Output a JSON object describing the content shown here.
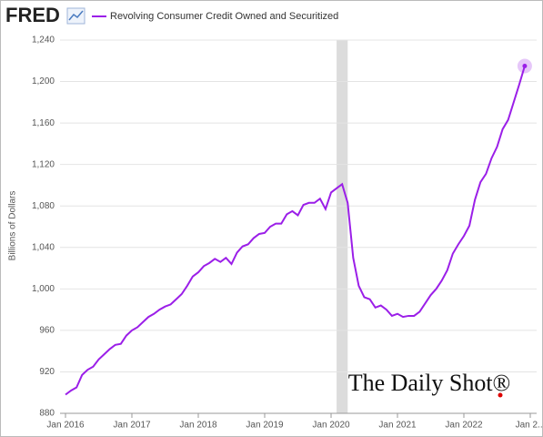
{
  "chart_data": {
    "type": "line",
    "brand": "FRED",
    "title": "Revolving Consumer Credit Owned and Securitized",
    "y_label": "Billions of Dollars",
    "watermark": "The Daily Shot®",
    "x": [
      "2016-01",
      "2016-02",
      "2016-03",
      "2016-04",
      "2016-05",
      "2016-06",
      "2016-07",
      "2016-08",
      "2016-09",
      "2016-10",
      "2016-11",
      "2016-12",
      "2017-01",
      "2017-02",
      "2017-03",
      "2017-04",
      "2017-05",
      "2017-06",
      "2017-07",
      "2017-08",
      "2017-09",
      "2017-10",
      "2017-11",
      "2017-12",
      "2018-01",
      "2018-02",
      "2018-03",
      "2018-04",
      "2018-05",
      "2018-06",
      "2018-07",
      "2018-08",
      "2018-09",
      "2018-10",
      "2018-11",
      "2018-12",
      "2019-01",
      "2019-02",
      "2019-03",
      "2019-04",
      "2019-05",
      "2019-06",
      "2019-07",
      "2019-08",
      "2019-09",
      "2019-10",
      "2019-11",
      "2019-12",
      "2020-01",
      "2020-02",
      "2020-03",
      "2020-04",
      "2020-05",
      "2020-06",
      "2020-07",
      "2020-08",
      "2020-09",
      "2020-10",
      "2020-11",
      "2020-12",
      "2021-01",
      "2021-02",
      "2021-03",
      "2021-04",
      "2021-05",
      "2021-06",
      "2021-07",
      "2021-08",
      "2021-09",
      "2021-10",
      "2021-11",
      "2021-12",
      "2022-01",
      "2022-02",
      "2022-03",
      "2022-04",
      "2022-05",
      "2022-06",
      "2022-07",
      "2022-08",
      "2022-09",
      "2022-10",
      "2022-11",
      "2022-12"
    ],
    "series": [
      {
        "name": "Revolving Consumer Credit Owned and Securitized",
        "color": "#9b1fe8",
        "values": [
          898,
          902,
          905,
          917,
          922,
          925,
          932,
          937,
          942,
          946,
          947,
          955,
          960,
          963,
          968,
          973,
          976,
          980,
          983,
          985,
          990,
          995,
          1003,
          1012,
          1016,
          1022,
          1025,
          1029,
          1026,
          1030,
          1024,
          1035,
          1041,
          1043,
          1049,
          1053,
          1054,
          1060,
          1063,
          1063,
          1072,
          1075,
          1071,
          1081,
          1083,
          1083,
          1087,
          1077,
          1093,
          1097,
          1101,
          1083,
          1030,
          1003,
          992,
          990,
          982,
          984,
          980,
          974,
          976,
          973,
          974,
          974,
          978,
          986,
          994,
          1000,
          1008,
          1018,
          1034,
          1043,
          1051,
          1061,
          1086,
          1103,
          1111,
          1126,
          1137,
          1154,
          1163,
          1180,
          1197,
          1215
        ]
      }
    ],
    "xlim": [
      "2016-01",
      "2023-01"
    ],
    "xticks": [
      {
        "value": "2016-01",
        "label": "Jan 2016"
      },
      {
        "value": "2017-01",
        "label": "Jan 2017"
      },
      {
        "value": "2018-01",
        "label": "Jan 2018"
      },
      {
        "value": "2019-01",
        "label": "Jan 2019"
      },
      {
        "value": "2020-01",
        "label": "Jan 2020"
      },
      {
        "value": "2021-01",
        "label": "Jan 2021"
      },
      {
        "value": "2022-01",
        "label": "Jan 2022"
      },
      {
        "value": "2023-01",
        "label": "Jan 2..."
      }
    ],
    "ylim": [
      880,
      1240
    ],
    "yticks": [
      880,
      920,
      960,
      {
        "value": 1000,
        "label": "1,000"
      },
      {
        "value": 1040,
        "label": "1,040"
      },
      {
        "value": 1080,
        "label": "1,080"
      },
      {
        "value": 1120,
        "label": "1,120"
      },
      {
        "value": 1160,
        "label": "1,160"
      },
      {
        "value": 1200,
        "label": "1,200"
      },
      {
        "value": 1240,
        "label": "1,240"
      }
    ],
    "grid": true,
    "shading": [
      {
        "start": "2020-02",
        "end": "2020-04",
        "color": "#dcdcdc"
      }
    ]
  }
}
